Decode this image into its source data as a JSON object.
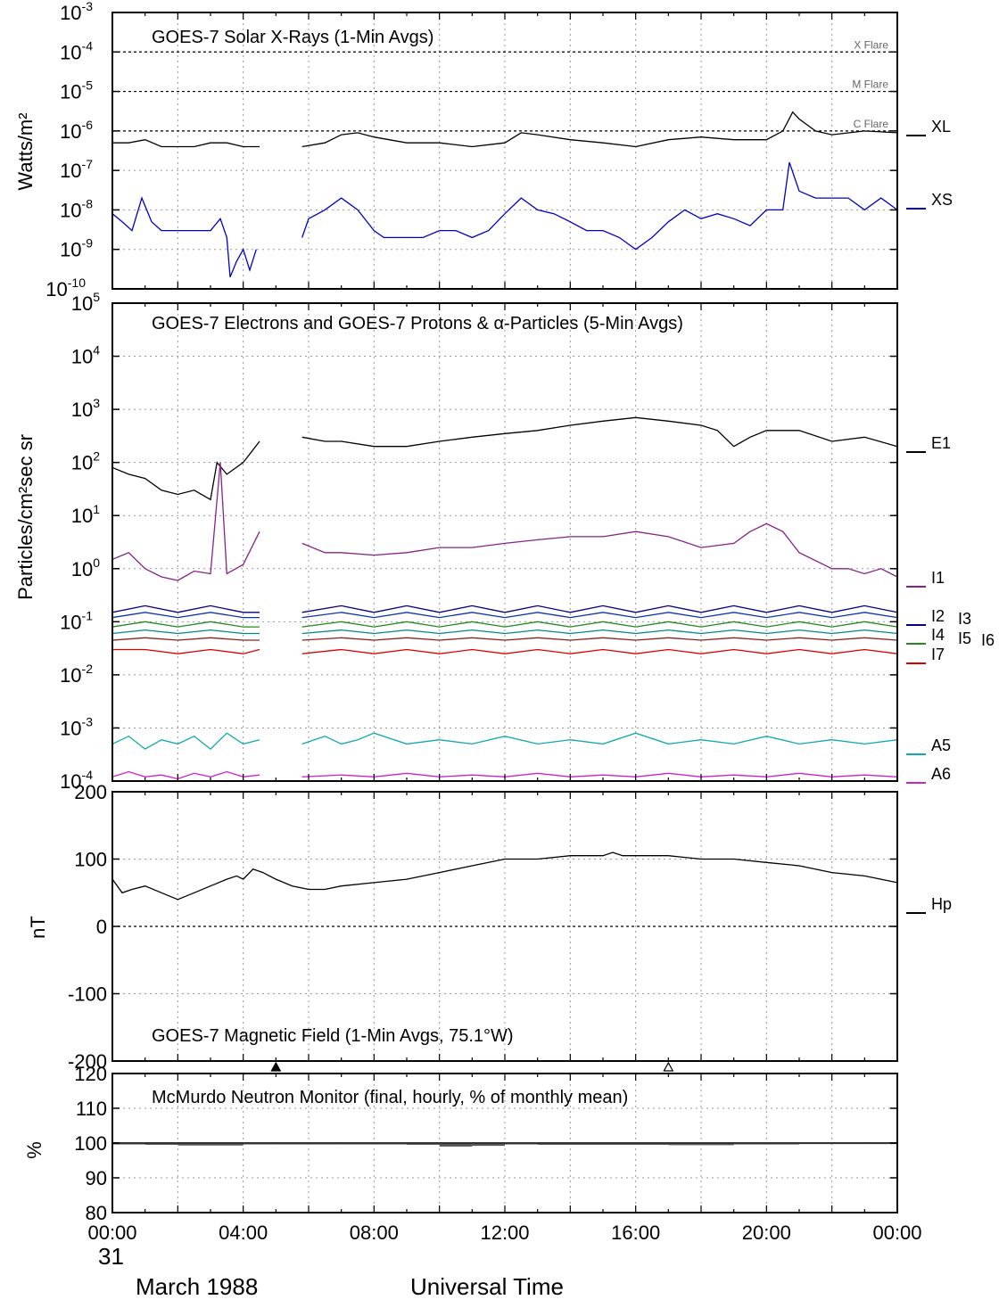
{
  "chart_data": [
    {
      "type": "line",
      "title": "GOES-7 Solar X-Rays (1-Min Avgs)",
      "ylabel": "Watts/m²",
      "yscale": "log",
      "ylim": [
        1e-10,
        0.001
      ],
      "yticks": [
        "10-10",
        "10-9",
        "10-8",
        "10-7",
        "10-6",
        "10-5",
        "10-4",
        "10-3"
      ],
      "flare_levels": [
        {
          "label": "X Flare",
          "value": 0.0001
        },
        {
          "label": "M Flare",
          "value": 1e-05
        },
        {
          "label": "C Flare",
          "value": 1e-06
        }
      ],
      "series": [
        {
          "name": "XL",
          "color": "#000000",
          "x": [
            0,
            0.5,
            1,
            1.5,
            2,
            2.5,
            3,
            3.5,
            4,
            4.5,
            5.8,
            6.5,
            7,
            7.5,
            8,
            9,
            10,
            11,
            12,
            12.5,
            13,
            14,
            15,
            16,
            17,
            18,
            19,
            20,
            20.5,
            20.8,
            21,
            21.5,
            22,
            23,
            24
          ],
          "y": [
            5e-07,
            5e-07,
            6e-07,
            4e-07,
            4e-07,
            4e-07,
            5e-07,
            5e-07,
            4e-07,
            4e-07,
            4e-07,
            5e-07,
            8e-07,
            9e-07,
            7e-07,
            5e-07,
            5e-07,
            4e-07,
            5e-07,
            9e-07,
            8e-07,
            6e-07,
            5e-07,
            4e-07,
            6e-07,
            7e-07,
            6e-07,
            6e-07,
            1e-06,
            3e-06,
            2e-06,
            1e-06,
            8e-07,
            1e-06,
            9e-07
          ]
        },
        {
          "name": "XS",
          "color": "#0000cc",
          "x": [
            0,
            0.3,
            0.6,
            0.9,
            1.2,
            1.5,
            2,
            2.5,
            3,
            3.3,
            3.5,
            3.6,
            3.8,
            4,
            4.2,
            4.4,
            5.8,
            6,
            6.5,
            7,
            7.5,
            8,
            8.3,
            8.6,
            9,
            9.5,
            10,
            10.5,
            11,
            11.5,
            12,
            12.5,
            13,
            13.5,
            14,
            14.5,
            15,
            15.5,
            16,
            16.5,
            17,
            17.5,
            18,
            18.5,
            19,
            19.5,
            20,
            20.5,
            20.7,
            21,
            21.5,
            22,
            22.5,
            23,
            23.5,
            24
          ],
          "y": [
            8e-09,
            5e-09,
            3e-09,
            2e-08,
            5e-09,
            3e-09,
            3e-09,
            3e-09,
            3e-09,
            6e-09,
            2e-09,
            2e-10,
            5e-10,
            1e-09,
            3e-10,
            1e-09,
            2e-09,
            6e-09,
            1e-08,
            2e-08,
            1e-08,
            3e-09,
            2e-09,
            2e-09,
            2e-09,
            2e-09,
            3e-09,
            3e-09,
            2e-09,
            3e-09,
            8e-09,
            2e-08,
            1e-08,
            8e-09,
            5e-09,
            3e-09,
            3e-09,
            2e-09,
            1e-09,
            2e-09,
            5e-09,
            1e-08,
            6e-09,
            8e-09,
            6e-09,
            4e-09,
            1e-08,
            1e-08,
            1.6e-07,
            3e-08,
            2e-08,
            2e-08,
            2e-08,
            1e-08,
            2e-08,
            1e-08
          ]
        }
      ],
      "gaps": [
        [
          4.5,
          5.75
        ]
      ]
    },
    {
      "type": "line",
      "title": "GOES-7 Electrons and GOES-7 Protons & α-Particles (5-Min Avgs)",
      "ylabel": "Particles/cm²sec sr",
      "yscale": "log",
      "ylim": [
        0.0001,
        100000.0
      ],
      "yticks": [
        "10-4",
        "10-3",
        "10-2",
        "10-1",
        "100",
        "101",
        "102",
        "103",
        "104",
        "105"
      ],
      "series": [
        {
          "name": "E1",
          "color": "#000000",
          "x": [
            0,
            0.5,
            1,
            1.5,
            2,
            2.5,
            3,
            3.2,
            3.5,
            4,
            4.5,
            5.8,
            6.5,
            7,
            8,
            9,
            10,
            11,
            12,
            13,
            14,
            15,
            16,
            17,
            18,
            18.5,
            19,
            19.5,
            20,
            21,
            22,
            23,
            24
          ],
          "y": [
            80,
            60,
            50,
            30,
            25,
            30,
            20,
            100,
            60,
            100,
            250,
            300,
            250,
            250,
            200,
            200,
            250,
            300,
            350,
            400,
            500,
            600,
            700,
            600,
            500,
            400,
            200,
            300,
            400,
            400,
            250,
            300,
            200
          ]
        },
        {
          "name": "I1",
          "color": "#882288",
          "x": [
            0,
            0.5,
            1,
            1.5,
            2,
            2.5,
            3,
            3.3,
            3.5,
            4,
            4.5,
            5.8,
            6.5,
            7,
            8,
            9,
            10,
            11,
            12,
            13,
            14,
            15,
            16,
            17,
            18,
            19,
            19.5,
            20,
            20.5,
            21,
            22,
            22.5,
            23,
            23.5,
            24
          ],
          "y": [
            1.5,
            2,
            1,
            0.7,
            0.6,
            0.9,
            0.8,
            100,
            0.8,
            1.2,
            5,
            3,
            2,
            2,
            1.8,
            2,
            2.5,
            2.5,
            3,
            3.5,
            4,
            4,
            5,
            4,
            2.5,
            3,
            5,
            7,
            5,
            2,
            1,
            1,
            0.8,
            1,
            0.7
          ]
        },
        {
          "name": "I2",
          "color": "#000080",
          "x": [
            0,
            1,
            2,
            3,
            4,
            4.5,
            5.8,
            7,
            8,
            9,
            10,
            11,
            12,
            13,
            14,
            15,
            16,
            17,
            18,
            19,
            20,
            21,
            22,
            23,
            24
          ],
          "y": [
            0.15,
            0.2,
            0.15,
            0.2,
            0.15,
            0.15,
            0.15,
            0.2,
            0.15,
            0.2,
            0.15,
            0.2,
            0.15,
            0.2,
            0.15,
            0.2,
            0.15,
            0.2,
            0.15,
            0.2,
            0.15,
            0.2,
            0.15,
            0.2,
            0.15
          ]
        },
        {
          "name": "I3",
          "color": "#1133aa",
          "x": [
            0,
            1,
            2,
            3,
            4,
            4.5,
            5.8,
            7,
            8,
            9,
            10,
            11,
            12,
            13,
            14,
            15,
            16,
            17,
            18,
            19,
            20,
            21,
            22,
            23,
            24
          ],
          "y": [
            0.12,
            0.15,
            0.12,
            0.15,
            0.12,
            0.12,
            0.12,
            0.15,
            0.12,
            0.15,
            0.12,
            0.15,
            0.12,
            0.15,
            0.12,
            0.15,
            0.12,
            0.15,
            0.12,
            0.15,
            0.12,
            0.15,
            0.12,
            0.15,
            0.12
          ]
        },
        {
          "name": "I4",
          "color": "#228822",
          "x": [
            0,
            1,
            2,
            3,
            4,
            4.5,
            5.8,
            7,
            8,
            9,
            10,
            11,
            12,
            13,
            14,
            15,
            16,
            17,
            18,
            19,
            20,
            21,
            22,
            23,
            24
          ],
          "y": [
            0.08,
            0.1,
            0.08,
            0.1,
            0.08,
            0.08,
            0.08,
            0.1,
            0.08,
            0.1,
            0.08,
            0.1,
            0.08,
            0.1,
            0.08,
            0.1,
            0.08,
            0.1,
            0.08,
            0.1,
            0.08,
            0.1,
            0.08,
            0.1,
            0.08
          ]
        },
        {
          "name": "I5",
          "color": "#008888",
          "x": [
            0,
            1,
            2,
            3,
            4,
            4.5,
            5.8,
            7,
            8,
            9,
            10,
            11,
            12,
            13,
            14,
            15,
            16,
            17,
            18,
            19,
            20,
            21,
            22,
            23,
            24
          ],
          "y": [
            0.06,
            0.07,
            0.06,
            0.07,
            0.06,
            0.06,
            0.06,
            0.07,
            0.06,
            0.07,
            0.06,
            0.07,
            0.06,
            0.07,
            0.06,
            0.07,
            0.06,
            0.07,
            0.06,
            0.07,
            0.06,
            0.07,
            0.06,
            0.07,
            0.06
          ]
        },
        {
          "name": "I6",
          "color": "#882222",
          "x": [
            0,
            1,
            2,
            3,
            4,
            4.5,
            5.8,
            7,
            8,
            9,
            10,
            11,
            12,
            13,
            14,
            15,
            16,
            17,
            18,
            19,
            20,
            21,
            22,
            23,
            24
          ],
          "y": [
            0.045,
            0.05,
            0.045,
            0.05,
            0.045,
            0.045,
            0.045,
            0.05,
            0.045,
            0.05,
            0.045,
            0.05,
            0.045,
            0.05,
            0.045,
            0.05,
            0.045,
            0.05,
            0.045,
            0.05,
            0.045,
            0.05,
            0.045,
            0.05,
            0.045
          ]
        },
        {
          "name": "I7",
          "color": "#dd0000",
          "x": [
            0,
            1,
            2,
            3,
            4,
            4.5,
            5.8,
            7,
            8,
            9,
            10,
            11,
            12,
            13,
            14,
            15,
            16,
            17,
            18,
            19,
            20,
            21,
            22,
            23,
            24
          ],
          "y": [
            0.03,
            0.03,
            0.025,
            0.03,
            0.025,
            0.03,
            0.025,
            0.03,
            0.025,
            0.03,
            0.025,
            0.03,
            0.025,
            0.03,
            0.025,
            0.03,
            0.025,
            0.03,
            0.025,
            0.03,
            0.025,
            0.03,
            0.025,
            0.03,
            0.025
          ]
        },
        {
          "name": "A5",
          "color": "#11aaaa",
          "x": [
            0,
            0.5,
            1,
            1.5,
            2,
            2.5,
            3,
            3.5,
            4,
            4.5,
            5.8,
            6.5,
            7,
            7.5,
            8,
            9,
            10,
            11,
            12,
            13,
            14,
            15,
            16,
            17,
            18,
            19,
            20,
            21,
            22,
            23,
            24
          ],
          "y": [
            0.0005,
            0.0007,
            0.0004,
            0.0006,
            0.0005,
            0.0007,
            0.0004,
            0.0008,
            0.0005,
            0.0006,
            0.0005,
            0.0007,
            0.0005,
            0.0006,
            0.0008,
            0.0005,
            0.0006,
            0.0005,
            0.0007,
            0.0005,
            0.0006,
            0.0005,
            0.0008,
            0.0005,
            0.0006,
            0.0005,
            0.0007,
            0.0005,
            0.0006,
            0.0005,
            0.0006
          ]
        },
        {
          "name": "A6",
          "color": "#cc22cc",
          "x": [
            0,
            0.5,
            1,
            1.5,
            2,
            2.5,
            3,
            3.5,
            4,
            4.5,
            5.8,
            7,
            8,
            9,
            10,
            11,
            12,
            13,
            14,
            15,
            16,
            17,
            18,
            19,
            20,
            21,
            22,
            23,
            24
          ],
          "y": [
            0.00012,
            0.00015,
            0.00012,
            0.00013,
            0.00011,
            0.00014,
            0.00012,
            0.00015,
            0.00012,
            0.00013,
            0.00012,
            0.00013,
            0.00012,
            0.00014,
            0.00012,
            0.00013,
            0.00012,
            0.00014,
            0.00012,
            0.00013,
            0.00012,
            0.00014,
            0.00012,
            0.00013,
            0.00012,
            0.00014,
            0.00012,
            0.00013,
            0.00012
          ]
        }
      ],
      "gaps": [
        [
          4.5,
          5.75
        ]
      ]
    },
    {
      "type": "line",
      "title": "GOES-7 Magnetic Field (1-Min Avgs, 75.1°W)",
      "ylabel": "nT",
      "ylim": [
        -200,
        200
      ],
      "yticks": [
        "-200",
        "-100",
        "0",
        "100",
        "200"
      ],
      "series": [
        {
          "name": "Hp",
          "color": "#000000",
          "x": [
            0,
            0.3,
            0.6,
            1,
            1.5,
            2,
            2.5,
            3,
            3.5,
            3.8,
            4,
            4.3,
            4.6,
            5,
            5.5,
            6,
            6.5,
            7,
            8,
            9,
            10,
            11,
            12,
            13,
            14,
            15,
            15.3,
            15.6,
            16,
            17,
            18,
            19,
            20,
            21,
            22,
            23,
            24
          ],
          "y": [
            70,
            50,
            55,
            60,
            50,
            40,
            50,
            60,
            70,
            75,
            70,
            85,
            80,
            70,
            60,
            55,
            55,
            60,
            65,
            70,
            80,
            90,
            100,
            100,
            105,
            105,
            110,
            105,
            105,
            105,
            100,
            100,
            95,
            90,
            80,
            75,
            65
          ]
        }
      ],
      "markers": [
        {
          "x": 5,
          "filled": true
        },
        {
          "x": 17,
          "filled": false
        }
      ]
    },
    {
      "type": "bar",
      "title": "McMurdo Neutron Monitor (final, hourly, % of monthly mean)",
      "ylabel": "%",
      "ylim": [
        80,
        120
      ],
      "yticks": [
        "80",
        "90",
        "100",
        "110",
        "120"
      ],
      "x": [
        0,
        1,
        2,
        3,
        4,
        5,
        6,
        7,
        8,
        9,
        10,
        11,
        12,
        13,
        14,
        15,
        16,
        17,
        18,
        19,
        20,
        21,
        22,
        23
      ],
      "values": [
        99.6,
        99.5,
        99.3,
        99.3,
        99.6,
        99.6,
        99.6,
        99.6,
        99.6,
        99.5,
        99.0,
        99.2,
        99.6,
        99.5,
        99.5,
        99.5,
        99.5,
        99.4,
        99.4,
        99.6,
        99.6,
        99.7,
        99.7,
        99.7
      ]
    }
  ],
  "xaxis": {
    "label": "Universal Time",
    "ticks": [
      "00:00",
      "04:00",
      "08:00",
      "12:00",
      "16:00",
      "20:00",
      "00:00"
    ],
    "day": "31",
    "month": "March 1988"
  }
}
